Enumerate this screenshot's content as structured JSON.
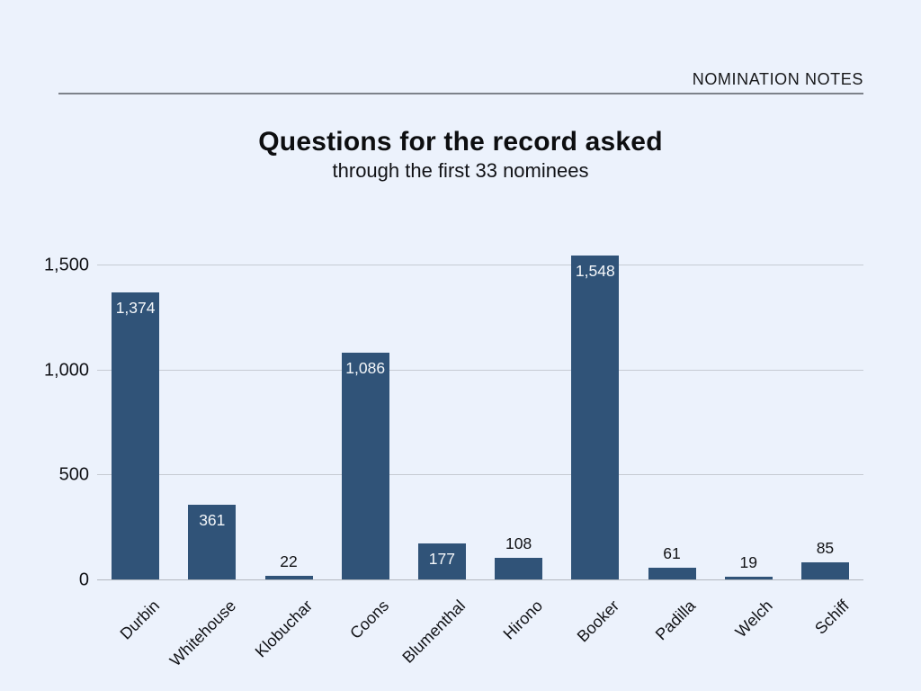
{
  "header": {
    "brand": "NOMINATION NOTES"
  },
  "title": "Questions for the record asked",
  "subtitle": "through the first 33 nominees",
  "colors": {
    "background": "#ECF2FC",
    "bar": "#305378",
    "grid": "#C6CBD3",
    "axis": "#B2B7BF",
    "value_inside": "#F4F7FA",
    "value_outside": "#121316",
    "text": "#111216",
    "rule": "#7D828A"
  },
  "chart_data": {
    "type": "bar",
    "title": "Questions for the record asked",
    "subtitle": "through the first 33 nominees",
    "xlabel": "",
    "ylabel": "",
    "categories": [
      "Durbin",
      "Whitehouse",
      "Klobuchar",
      "Coons",
      "Blumenthal",
      "Hirono",
      "Booker",
      "Padilla",
      "Welch",
      "Schiff"
    ],
    "values": [
      1374,
      361,
      22,
      1086,
      177,
      108,
      1548,
      61,
      19,
      85
    ],
    "value_labels": [
      "1,374",
      "361",
      "22",
      "1,086",
      "177",
      "108",
      "1,548",
      "61",
      "19",
      "85"
    ],
    "ylim": [
      0,
      1600
    ],
    "yticks": [
      0,
      500,
      1000,
      1500
    ],
    "ytick_labels": [
      "0",
      "500",
      "1,000",
      "1,500"
    ],
    "grid": true,
    "legend": false
  }
}
